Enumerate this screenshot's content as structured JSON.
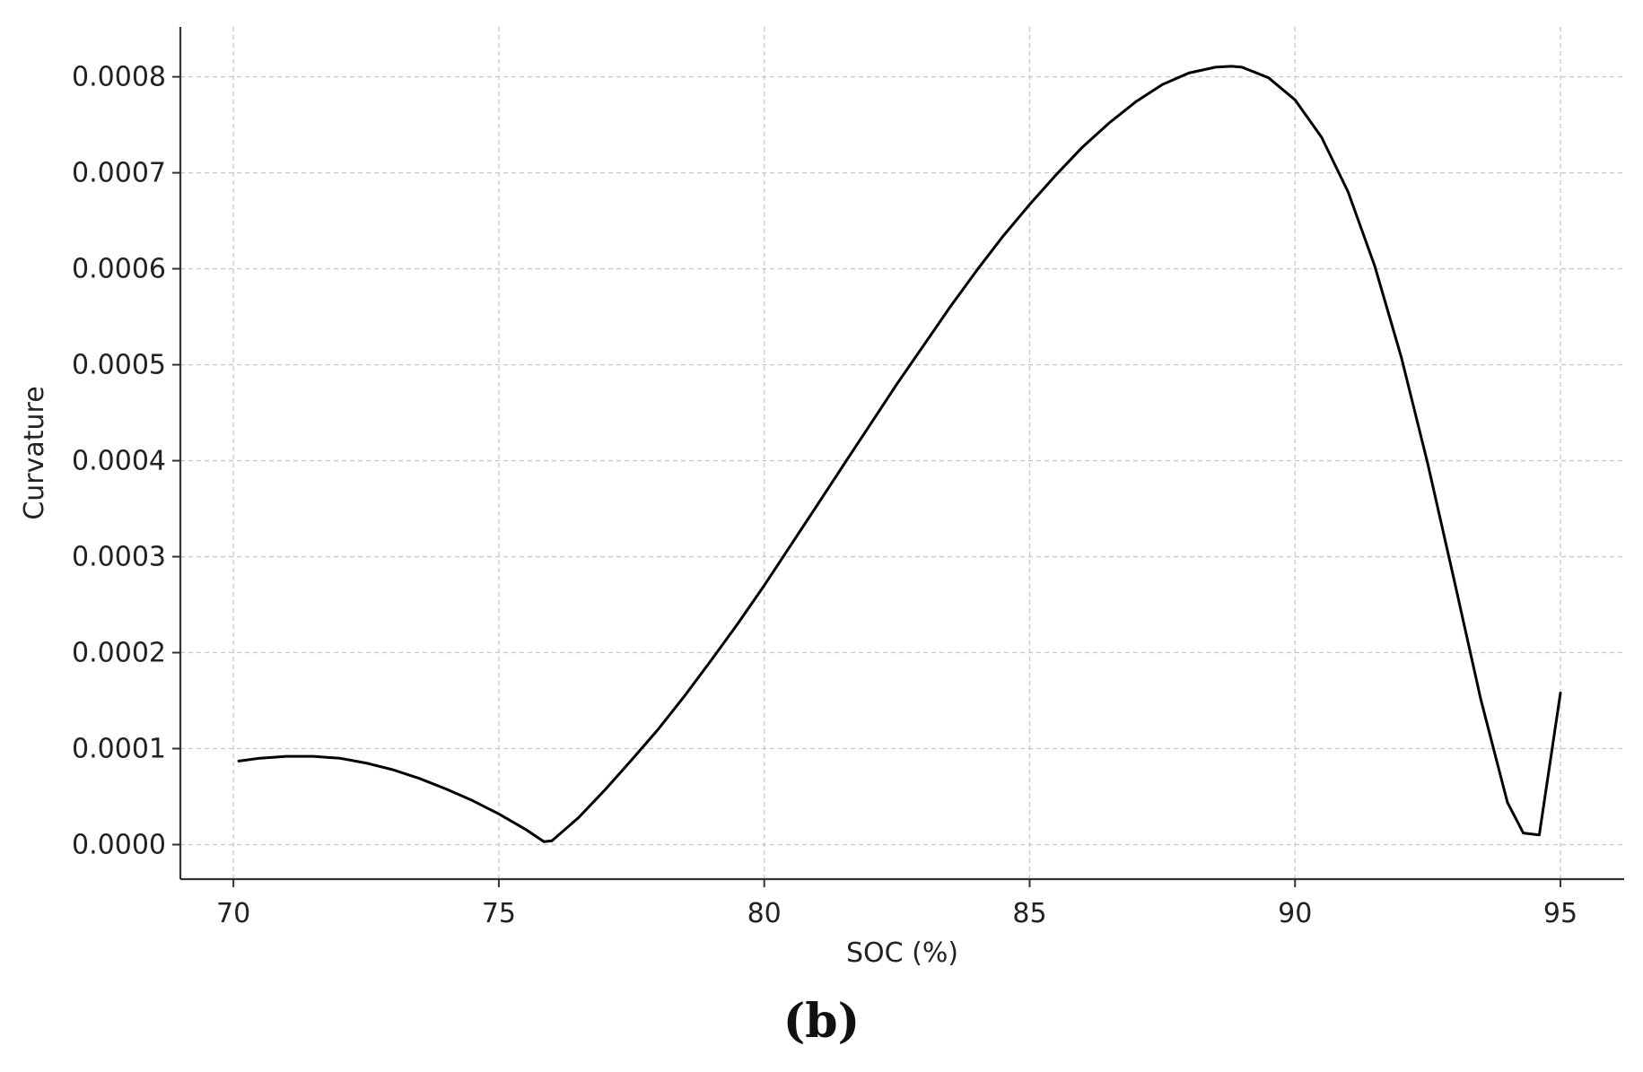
{
  "panel_label": "(b)",
  "chart_data": {
    "type": "line",
    "title": "",
    "xlabel": "SOC (%)",
    "ylabel": "Curvature",
    "xlim": [
      69,
      96.2
    ],
    "ylim": [
      -3.6e-05,
      0.000852
    ],
    "xticks": [
      70,
      75,
      80,
      85,
      90,
      95
    ],
    "xtick_labels": [
      "70",
      "75",
      "80",
      "85",
      "90",
      "95"
    ],
    "yticks": [
      0,
      0.0001,
      0.0002,
      0.0003,
      0.0004,
      0.0005,
      0.0006,
      0.0007,
      0.0008
    ],
    "ytick_labels": [
      "0.0000",
      "0.0001",
      "0.0002",
      "0.0003",
      "0.0004",
      "0.0005",
      "0.0006",
      "0.0007",
      "0.0008"
    ],
    "grid": true,
    "line_color": "#000000",
    "series": [
      {
        "x": [
          70.1,
          70.5,
          71.0,
          71.5,
          72.0,
          72.5,
          73.0,
          73.5,
          74.0,
          74.5,
          75.0,
          75.5,
          75.85,
          76.0,
          76.5,
          77.0,
          77.5,
          78.0,
          78.5,
          79.0,
          79.5,
          80.0,
          80.5,
          81.0,
          81.5,
          82.0,
          82.5,
          83.0,
          83.5,
          84.0,
          84.5,
          85.0,
          85.5,
          86.0,
          86.5,
          87.0,
          87.5,
          88.0,
          88.5,
          88.8,
          89.0,
          89.5,
          90.0,
          90.5,
          91.0,
          91.5,
          92.0,
          92.5,
          93.0,
          93.5,
          94.0,
          94.3,
          94.6,
          95.0
        ],
        "y": [
          8.7e-05,
          9e-05,
          9.2e-05,
          9.2e-05,
          9e-05,
          8.5e-05,
          7.8e-05,
          6.9e-05,
          5.8e-05,
          4.6e-05,
          3.2e-05,
          1.6e-05,
          3e-06,
          4e-06,
          2.8e-05,
          5.7e-05,
          8.8e-05,
          0.00012,
          0.000155,
          0.000192,
          0.00023,
          0.00027,
          0.000312,
          0.000354,
          0.000396,
          0.000438,
          0.00048,
          0.00052,
          0.00056,
          0.000598,
          0.000634,
          0.000667,
          0.000698,
          0.000727,
          0.000752,
          0.000774,
          0.000792,
          0.000804,
          0.00081,
          0.000811,
          0.00081,
          0.000799,
          0.000776,
          0.000737,
          0.00068,
          0.000603,
          0.000508,
          0.000397,
          0.000275,
          0.000151,
          4.4e-05,
          1.2e-05,
          1e-05,
          0.000158
        ]
      }
    ]
  }
}
